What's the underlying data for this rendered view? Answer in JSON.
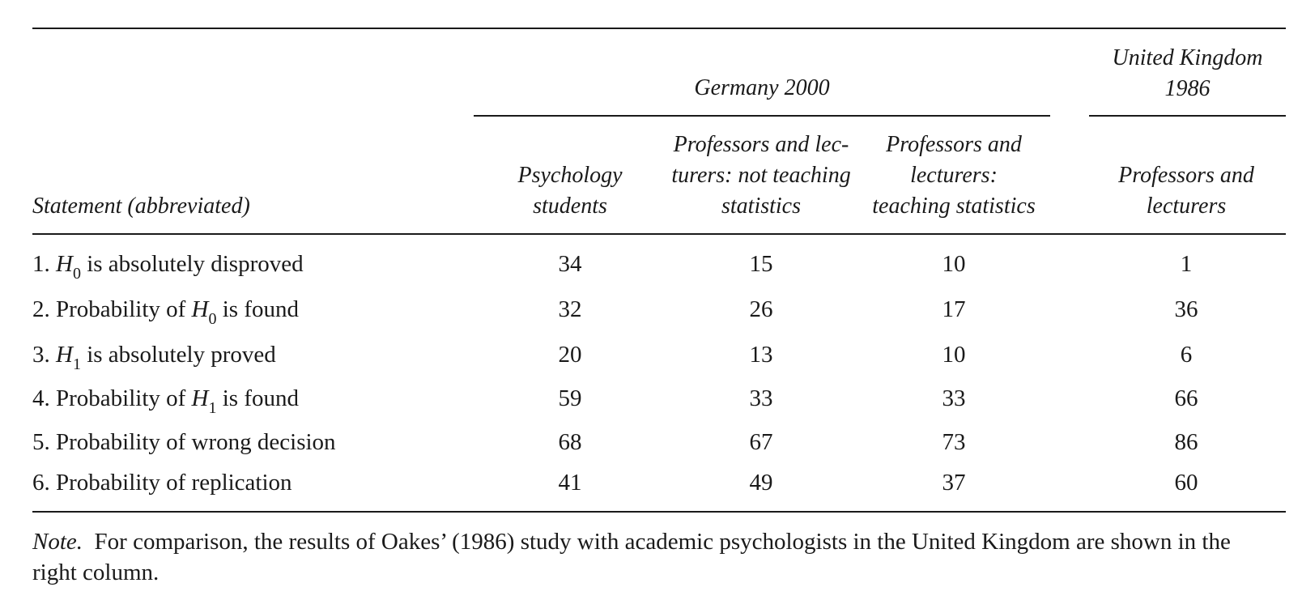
{
  "table": {
    "group_header_germany": "Germany 2000",
    "group_header_uk_line1": "United Kingdom",
    "group_header_uk_line2": "1986",
    "row_header": "Statement (abbreviated)",
    "columns": [
      {
        "lines": [
          "Psychology",
          "students"
        ]
      },
      {
        "lines": [
          "Professors and lec-",
          "turers: not teaching",
          "statistics"
        ]
      },
      {
        "lines": [
          "Professors and",
          "lecturers:",
          "teaching statistics"
        ]
      },
      {
        "lines": [
          "Professors and",
          "lecturers"
        ]
      }
    ],
    "rows": [
      {
        "num": "1.",
        "pre": "",
        "sym": "H",
        "sub": "0",
        "post": " is absolutely disproved",
        "values": [
          "34",
          "15",
          "10",
          "1"
        ]
      },
      {
        "num": "2.",
        "pre": "Probability of ",
        "sym": "H",
        "sub": "0",
        "post": " is found",
        "values": [
          "32",
          "26",
          "17",
          "36"
        ]
      },
      {
        "num": "3.",
        "pre": "",
        "sym": "H",
        "sub": "1",
        "post": " is absolutely proved",
        "values": [
          "20",
          "13",
          "10",
          "6"
        ]
      },
      {
        "num": "4.",
        "pre": "Probability of ",
        "sym": "H",
        "sub": "1",
        "post": " is found",
        "values": [
          "59",
          "33",
          "33",
          "66"
        ]
      },
      {
        "num": "5.",
        "pre": "Probability of wrong decision",
        "sym": "",
        "sub": "",
        "post": "",
        "values": [
          "68",
          "67",
          "73",
          "86"
        ]
      },
      {
        "num": "6.",
        "pre": "Probability of replication",
        "sym": "",
        "sub": "",
        "post": "",
        "values": [
          "41",
          "49",
          "37",
          "60"
        ]
      }
    ]
  },
  "note": {
    "label": "Note.",
    "text": "For comparison, the results of Oakes’ (1986) study with academic psychologists in the United Kingdom are shown in the right column."
  }
}
